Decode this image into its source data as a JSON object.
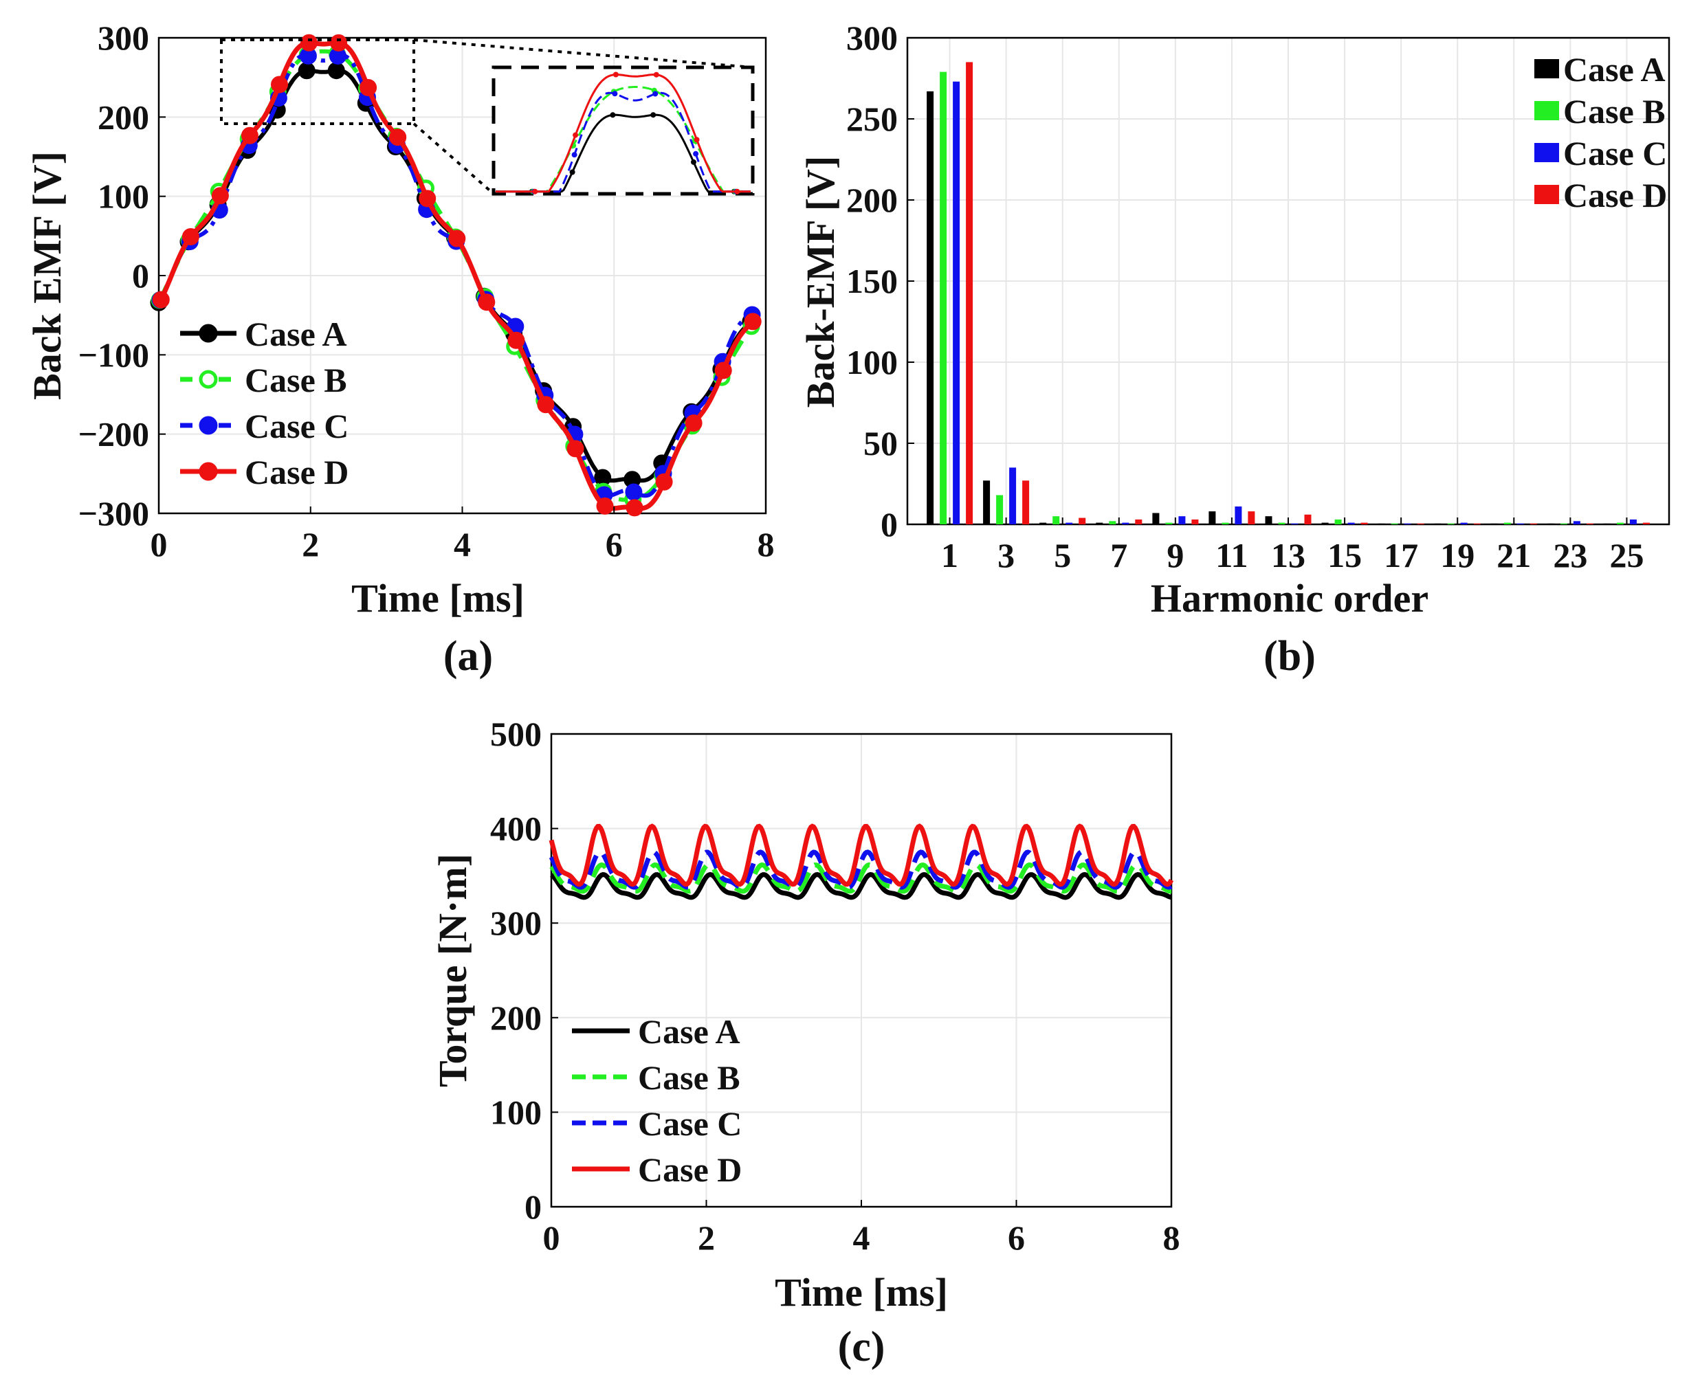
{
  "chart_data": [
    {
      "type": "line",
      "panel": "(a)",
      "xlabel": "Time [ms]",
      "ylabel": "Back EMF [V]",
      "xlim": [
        0,
        8
      ],
      "ylim": [
        -300,
        300
      ],
      "xticks": [
        "0",
        "2",
        "4",
        "6",
        "8"
      ],
      "yticks": [
        "300",
        "200",
        "100",
        "0",
        "−100",
        "−200",
        "−300"
      ],
      "grid": true,
      "legend": "bottom-left",
      "inset": "zoom of peak region 0.8–3.3 ms, 190–300 V",
      "series": [
        {
          "name": "Case A",
          "color": "#000000",
          "style": "solid",
          "amp": 240,
          "k3": -0.08,
          "k5": 0.02,
          "k11": 0.03
        },
        {
          "name": "Case B",
          "color": "#22ee22",
          "style": "dashed",
          "amp": 262,
          "k3": -0.07,
          "k5": 0.02,
          "k11": 0.01
        },
        {
          "name": "Case C",
          "color": "#1010ee",
          "style": "dashdot",
          "amp": 250,
          "k3": -0.12,
          "k5": 0.01,
          "k11": 0.045
        },
        {
          "name": "Case D",
          "color": "#ee1111",
          "style": "solid",
          "amp": 268,
          "k3": -0.1,
          "k5": 0.02,
          "k11": 0.03
        }
      ],
      "phase_deg": -7.5
    },
    {
      "type": "bar",
      "panel": "(b)",
      "xlabel": "Harmonic order",
      "ylabel": "Back-EMF [V]",
      "ylim": [
        0,
        300
      ],
      "yticks": [
        "0",
        "50",
        "100",
        "150",
        "200",
        "250",
        "300"
      ],
      "categories": [
        "1",
        "3",
        "5",
        "7",
        "9",
        "11",
        "13",
        "15",
        "17",
        "19",
        "21",
        "23",
        "25"
      ],
      "grid": true,
      "legend": "top-right",
      "series": [
        {
          "name": "Case A",
          "color": "#000000",
          "values": [
            267,
            27,
            1,
            1,
            7,
            8,
            5,
            1,
            0.5,
            0.5,
            0.5,
            0.5,
            0.5
          ]
        },
        {
          "name": "Case B",
          "color": "#22ee22",
          "values": [
            279,
            18,
            5,
            2,
            1,
            1,
            1,
            3,
            0.5,
            0.5,
            1,
            0.5,
            1
          ]
        },
        {
          "name": "Case C",
          "color": "#1010ee",
          "values": [
            273,
            35,
            1,
            1,
            5,
            11,
            0.5,
            1,
            0.5,
            1,
            0.5,
            2,
            3
          ]
        },
        {
          "name": "Case D",
          "color": "#ee1111",
          "values": [
            285,
            27,
            4,
            3,
            3,
            8,
            6,
            1,
            0.5,
            0.5,
            0.5,
            0.5,
            1
          ]
        }
      ]
    },
    {
      "type": "line",
      "panel": "(c)",
      "xlabel": "Time [ms]",
      "ylabel": "Torque [N·m]",
      "xlim": [
        0,
        8
      ],
      "ylim": [
        0,
        500
      ],
      "xticks": [
        "0",
        "2",
        "4",
        "6",
        "8"
      ],
      "yticks": [
        "500",
        "400",
        "300",
        "200",
        "100",
        "0"
      ],
      "grid": true,
      "legend": "bottom-left",
      "ripple_period_ms": 0.69,
      "series": [
        {
          "name": "Case A",
          "color": "#000000",
          "style": "solid",
          "mean": 337,
          "ripple": 13,
          "phase": 0.0
        },
        {
          "name": "Case B",
          "color": "#22ee22",
          "style": "dashed",
          "mean": 345,
          "ripple": 15,
          "phase": 0.03
        },
        {
          "name": "Case C",
          "color": "#1010ee",
          "style": "dashed",
          "mean": 353,
          "ripple": 20,
          "phase": 0.06
        },
        {
          "name": "Case D",
          "color": "#ee1111",
          "style": "solid",
          "mean": 366,
          "ripple": 33,
          "phase": 0.09
        }
      ]
    }
  ]
}
